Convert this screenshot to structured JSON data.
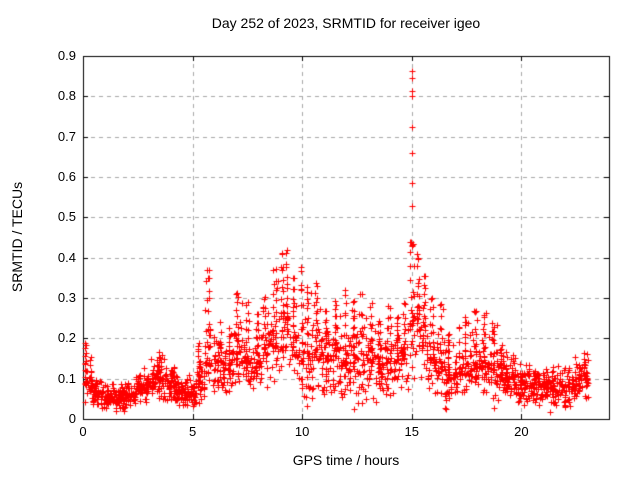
{
  "chart_data": {
    "type": "scatter",
    "title": "Day 252 of 2023, SRMTID for receiver igeo",
    "xlabel": "GPS time / hours",
    "ylabel": "SRMTID / TECUs",
    "xlim": [
      0,
      24
    ],
    "ylim": [
      0,
      0.9
    ],
    "x_ticks": [
      0,
      5,
      10,
      15,
      20
    ],
    "y_ticks": [
      0,
      0.1,
      0.2,
      0.3,
      0.4,
      0.5,
      0.6,
      0.7,
      0.8,
      0.9
    ],
    "grid": true,
    "legend": "none",
    "marker": {
      "shape": "plus",
      "size": 7
    },
    "colors": {
      "marker": "#ff0000",
      "grid": "#a8a8a8",
      "axis": "#000000",
      "background": "#ffffff",
      "text": "#000000"
    },
    "seed": 20230252,
    "series": [
      {
        "name": "SRMTID",
        "points_per_hour": 100,
        "envelope": [
          [
            0.0,
            0.2,
            0.03,
            0.08,
            0.2
          ],
          [
            0.2,
            0.5,
            0.035,
            0.08,
            0.16
          ],
          [
            0.5,
            0.9,
            0.03,
            0.065,
            0.12
          ],
          [
            0.9,
            1.4,
            0.025,
            0.055,
            0.1
          ],
          [
            1.4,
            1.9,
            0.02,
            0.05,
            0.09
          ],
          [
            1.9,
            2.4,
            0.03,
            0.06,
            0.11
          ],
          [
            2.4,
            2.9,
            0.04,
            0.075,
            0.13
          ],
          [
            2.9,
            3.3,
            0.05,
            0.09,
            0.15
          ],
          [
            3.3,
            3.8,
            0.05,
            0.1,
            0.17
          ],
          [
            3.8,
            4.2,
            0.04,
            0.08,
            0.14
          ],
          [
            4.2,
            4.7,
            0.03,
            0.065,
            0.115
          ],
          [
            4.7,
            5.15,
            0.03,
            0.06,
            0.11
          ],
          [
            5.15,
            5.55,
            0.04,
            0.09,
            0.19
          ],
          [
            5.55,
            6.0,
            0.07,
            0.16,
            0.375
          ],
          [
            6.0,
            6.45,
            0.07,
            0.135,
            0.25
          ],
          [
            6.45,
            6.85,
            0.06,
            0.125,
            0.23
          ],
          [
            6.85,
            7.25,
            0.07,
            0.15,
            0.33
          ],
          [
            7.25,
            7.7,
            0.07,
            0.14,
            0.3
          ],
          [
            7.7,
            8.1,
            0.07,
            0.13,
            0.27
          ],
          [
            8.1,
            8.5,
            0.08,
            0.16,
            0.32
          ],
          [
            8.5,
            8.9,
            0.09,
            0.18,
            0.38
          ],
          [
            8.9,
            9.2,
            0.1,
            0.2,
            0.425
          ],
          [
            9.2,
            9.45,
            0.1,
            0.21,
            0.43
          ],
          [
            9.45,
            9.75,
            0.08,
            0.17,
            0.36
          ],
          [
            9.75,
            10.05,
            0.08,
            0.16,
            0.4
          ],
          [
            10.05,
            10.45,
            0.05,
            0.15,
            0.34
          ],
          [
            10.45,
            10.9,
            0.07,
            0.16,
            0.35
          ],
          [
            10.9,
            11.35,
            0.06,
            0.14,
            0.28
          ],
          [
            11.35,
            11.75,
            0.07,
            0.15,
            0.3
          ],
          [
            11.75,
            12.15,
            0.05,
            0.14,
            0.33
          ],
          [
            12.15,
            12.55,
            0.03,
            0.13,
            0.3
          ],
          [
            12.55,
            12.95,
            0.04,
            0.14,
            0.33
          ],
          [
            12.95,
            13.35,
            0.04,
            0.13,
            0.3
          ],
          [
            13.35,
            13.75,
            0.05,
            0.12,
            0.25
          ],
          [
            13.75,
            14.15,
            0.06,
            0.13,
            0.29
          ],
          [
            14.15,
            14.55,
            0.07,
            0.14,
            0.26
          ],
          [
            14.55,
            14.85,
            0.08,
            0.15,
            0.3
          ],
          [
            14.85,
            15.15,
            0.1,
            0.22,
            0.46
          ],
          [
            15.15,
            15.45,
            0.08,
            0.2,
            0.42
          ],
          [
            15.45,
            15.75,
            0.07,
            0.17,
            0.37
          ],
          [
            15.75,
            16.1,
            0.06,
            0.14,
            0.31
          ],
          [
            16.1,
            16.5,
            0.05,
            0.12,
            0.3
          ],
          [
            16.5,
            16.9,
            0.04,
            0.1,
            0.22
          ],
          [
            16.9,
            17.3,
            0.05,
            0.11,
            0.24
          ],
          [
            17.3,
            17.7,
            0.05,
            0.12,
            0.26
          ],
          [
            17.7,
            18.1,
            0.05,
            0.125,
            0.28
          ],
          [
            18.1,
            18.5,
            0.05,
            0.12,
            0.27
          ],
          [
            18.5,
            18.9,
            0.04,
            0.11,
            0.24
          ],
          [
            18.9,
            19.3,
            0.04,
            0.1,
            0.19
          ],
          [
            19.3,
            19.8,
            0.045,
            0.1,
            0.16
          ],
          [
            19.8,
            20.3,
            0.04,
            0.09,
            0.15
          ],
          [
            20.3,
            20.8,
            0.04,
            0.085,
            0.14
          ],
          [
            20.8,
            21.3,
            0.035,
            0.08,
            0.13
          ],
          [
            21.3,
            21.8,
            0.03,
            0.075,
            0.14
          ],
          [
            21.8,
            22.25,
            0.03,
            0.08,
            0.15
          ],
          [
            22.25,
            22.65,
            0.04,
            0.09,
            0.16
          ],
          [
            22.65,
            23.05,
            0.05,
            0.1,
            0.175
          ]
        ],
        "outliers": [
          [
            15.0,
            0.862
          ],
          [
            15.02,
            0.845
          ],
          [
            15.0,
            0.812
          ],
          [
            15.01,
            0.8
          ],
          [
            15.0,
            0.725
          ],
          [
            15.02,
            0.66
          ],
          [
            15.0,
            0.585
          ],
          [
            15.01,
            0.527
          ],
          [
            14.98,
            0.438
          ],
          [
            15.0,
            0.432
          ],
          [
            15.03,
            0.428
          ],
          [
            15.05,
            0.433
          ],
          [
            15.3,
            0.397
          ],
          [
            16.5,
            0.028
          ],
          [
            16.55,
            0.025
          ],
          [
            12.35,
            0.025
          ],
          [
            13.38,
            0.042
          ],
          [
            10.2,
            0.032
          ],
          [
            1.52,
            0.02
          ],
          [
            18.75,
            0.027
          ],
          [
            21.3,
            0.018
          ],
          [
            22.0,
            0.03
          ]
        ]
      }
    ]
  }
}
